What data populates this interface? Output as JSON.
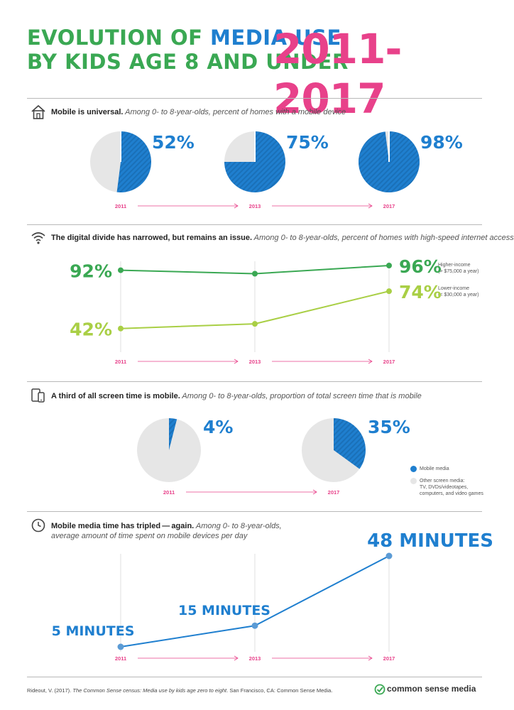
{
  "header": {
    "title_part1": "EVOLUTION OF ",
    "title_part2": "MEDIA USE",
    "title_line2": "BY KIDS AGE 8 AND UNDER",
    "years": "2011-2017"
  },
  "colors": {
    "blue": "#1f7fcf",
    "dark_green": "#3aa853",
    "light_green": "#a9cf45",
    "pink": "#e8418a",
    "gray_slice": "#e6e6e6"
  },
  "sections": {
    "mobile": {
      "head_bold": "Mobile is universal.",
      "head_italic": " Among 0- to 8-year-olds, percent of homes with a mobile device"
    },
    "divide": {
      "head_bold": "The digital divide has narrowed, but remains an issue.",
      "head_italic": " Among 0- to 8-year-olds, percent of homes with high-speed internet access"
    },
    "screen": {
      "head_bold": "A third of all screen time is mobile.",
      "head_italic": " Among 0- to 8-year-olds, proportion of total screen time that is mobile"
    },
    "time": {
      "head_bold": "Mobile media time has tripled — again.",
      "head_italic": " Among 0- to 8-year-olds,",
      "head_line2": "average amount of time spent on mobile devices per day"
    }
  },
  "chart_data": [
    {
      "type": "pie",
      "categories": [
        "2011",
        "2013",
        "2017"
      ],
      "values": [
        52,
        75,
        98
      ],
      "labels": [
        "52%",
        "75%",
        "98%"
      ]
    },
    {
      "type": "line",
      "x": [
        "2011",
        "2013",
        "2017"
      ],
      "series": [
        {
          "name": "Higher-income",
          "note": "(> $75,000 a year)",
          "values": [
            92,
            89,
            96
          ],
          "labels": [
            "92%",
            "",
            "96%"
          ]
        },
        {
          "name": "Lower-income",
          "note": "(< $30,000 a year)",
          "values": [
            42,
            46,
            74
          ],
          "labels": [
            "42%",
            "",
            "74%"
          ]
        }
      ],
      "ylim": [
        0,
        100
      ]
    },
    {
      "type": "pie",
      "categories": [
        "2011",
        "2017"
      ],
      "values": [
        4,
        35
      ],
      "labels": [
        "4%",
        "35%"
      ],
      "legend": [
        {
          "label": "Mobile media"
        },
        {
          "label": "Other screen media:",
          "detail1": "TV, DVDs/videotapes,",
          "detail2": "computers, and video games"
        }
      ]
    },
    {
      "type": "line",
      "x": [
        "2011",
        "2013",
        "2017"
      ],
      "values": [
        5,
        15,
        48
      ],
      "labels": [
        "5 MINUTES",
        "15 MINUTES",
        "48 MINUTES"
      ],
      "ylim": [
        0,
        48
      ]
    }
  ],
  "footer": {
    "citation_a": "Rideout, V. (2017). ",
    "citation_b": "The Common Sense census: Media use by kids age zero to eight",
    "citation_c": ". San Francisco, CA: Common Sense Media.",
    "brand": "common sense media"
  }
}
